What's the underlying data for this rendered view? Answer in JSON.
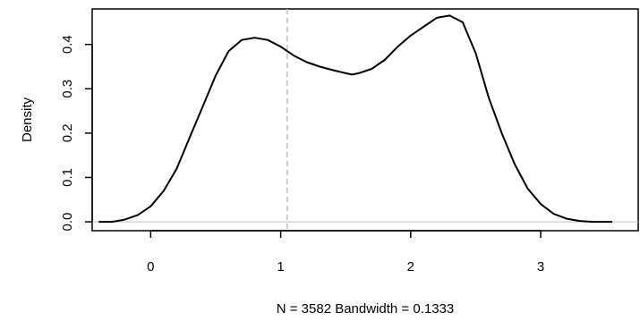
{
  "chart_data": {
    "type": "line",
    "title": "",
    "xlabel": "N = 3582   Bandwidth = 0.1333",
    "ylabel": "Density",
    "xlim": [
      -0.45,
      3.75
    ],
    "ylim": [
      -0.02,
      0.48
    ],
    "x_ticks": [
      0,
      1,
      2,
      3
    ],
    "x_tick_labels": [
      "0",
      "1",
      "2",
      "3"
    ],
    "y_ticks": [
      0.0,
      0.1,
      0.2,
      0.3,
      0.4
    ],
    "y_tick_labels": [
      "0.0",
      "0.1",
      "0.2",
      "0.3",
      "0.4"
    ],
    "grid": false,
    "reference_lines": {
      "horizontal_zero": {
        "y": 0,
        "color": "#bebebe"
      },
      "vertical_dashed": {
        "x": 1.05,
        "color": "#bebebe"
      }
    },
    "series": [
      {
        "color": "#000000",
        "x": [
          -0.4,
          -0.3,
          -0.2,
          -0.1,
          0.0,
          0.1,
          0.2,
          0.3,
          0.4,
          0.5,
          0.6,
          0.7,
          0.8,
          0.9,
          1.0,
          1.1,
          1.2,
          1.3,
          1.4,
          1.5,
          1.55,
          1.6,
          1.7,
          1.8,
          1.9,
          2.0,
          2.1,
          2.2,
          2.3,
          2.4,
          2.5,
          2.6,
          2.7,
          2.8,
          2.9,
          3.0,
          3.1,
          3.2,
          3.3,
          3.4,
          3.55
        ],
        "y": [
          0.0,
          0.0,
          0.005,
          0.015,
          0.035,
          0.07,
          0.12,
          0.19,
          0.26,
          0.33,
          0.385,
          0.41,
          0.415,
          0.41,
          0.395,
          0.375,
          0.36,
          0.35,
          0.342,
          0.335,
          0.332,
          0.335,
          0.345,
          0.365,
          0.395,
          0.42,
          0.44,
          0.46,
          0.465,
          0.45,
          0.38,
          0.28,
          0.2,
          0.13,
          0.075,
          0.04,
          0.018,
          0.007,
          0.002,
          0.0,
          0.0
        ]
      }
    ]
  }
}
